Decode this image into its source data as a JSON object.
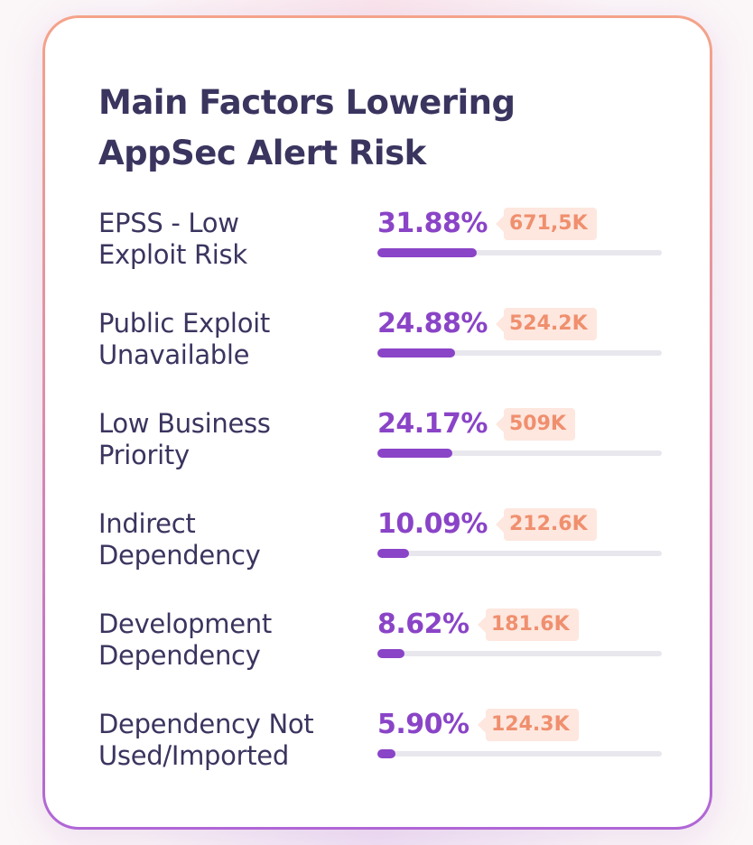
{
  "chart_data": {
    "type": "bar",
    "title": "Main Factors Lowering AppSec Alert Risk",
    "title_lines": [
      "Main Factors Lowering",
      "AppSec Alert Risk"
    ],
    "categories": [
      "EPSS - Low Exploit Risk",
      "Public Exploit Unavailable",
      "Low Business Priority",
      "Indirect Dependency",
      "Development Dependency",
      "Dependency Not Used/Imported"
    ],
    "category_lines": [
      [
        "EPSS - Low",
        "Exploit Risk"
      ],
      [
        "Public Exploit",
        "Unavailable"
      ],
      [
        "Low Business",
        "Priority"
      ],
      [
        "Indirect",
        "Dependency"
      ],
      [
        "Development",
        "Dependency"
      ],
      [
        "Dependency Not",
        "Used/Imported"
      ]
    ],
    "values": [
      31.88,
      24.88,
      24.17,
      10.09,
      8.62,
      5.9
    ],
    "value_labels": [
      "31.88%",
      "24.88%",
      "24.17%",
      "10.09%",
      "8.62%",
      "5.90%"
    ],
    "counts": [
      "671,5K",
      "524.2K",
      "509K",
      "212.6K",
      "181.6K",
      "124.3K"
    ],
    "colors": {
      "bar": "#8a44c7",
      "track": "#e8e7ed",
      "percent_text": "#8a44c7",
      "count_text": "#f08f6e",
      "count_badge": "#fde7df",
      "title_text": "#3a355f"
    }
  }
}
